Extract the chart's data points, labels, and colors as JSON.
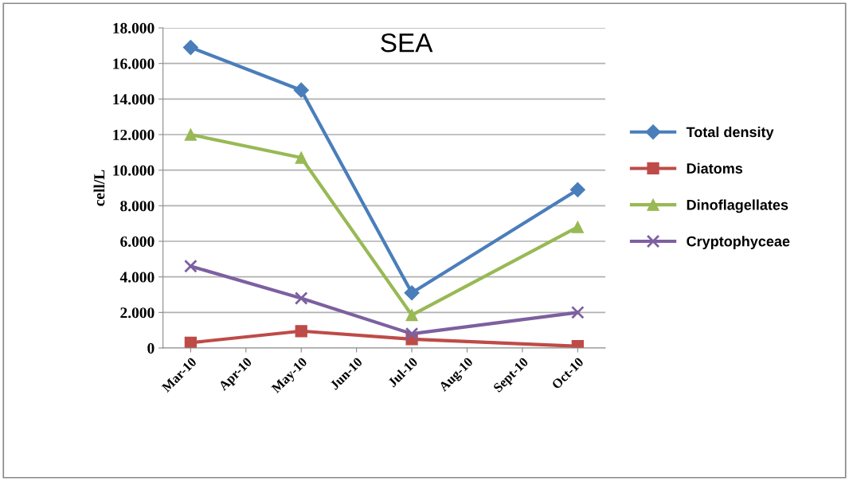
{
  "chart_data": {
    "type": "line",
    "title": "SEA",
    "ylabel": "cell/L",
    "categories": [
      "Mar-10",
      "Apr-10",
      "May-10",
      "Jun-10",
      "Jul-10",
      "Aug-10",
      "Sept-10",
      "Oct-10"
    ],
    "series": [
      {
        "name": "Total density",
        "color": "#4a7ebb",
        "marker": "diamond",
        "values": [
          16900,
          null,
          14500,
          null,
          3100,
          null,
          null,
          8900
        ]
      },
      {
        "name": "Diatoms",
        "color": "#be4b48",
        "marker": "square",
        "values": [
          300,
          null,
          950,
          null,
          500,
          null,
          null,
          100
        ]
      },
      {
        "name": "Dinoflagellates",
        "color": "#98b954",
        "marker": "triangle",
        "values": [
          12000,
          null,
          10700,
          null,
          1850,
          null,
          null,
          6800
        ]
      },
      {
        "name": "Cryptophyceae",
        "color": "#7d60a0",
        "marker": "cross",
        "values": [
          4600,
          null,
          2800,
          null,
          800,
          null,
          null,
          2000
        ]
      }
    ],
    "ylim": [
      0,
      18000
    ],
    "yticks": [
      0,
      {
        "value": 2000,
        "label": "2.000"
      },
      {
        "value": 4000,
        "label": "4.000"
      },
      {
        "value": 6000,
        "label": "6.000"
      },
      {
        "value": 8000,
        "label": "8.000"
      },
      {
        "value": 10000,
        "label": "10.000"
      },
      {
        "value": 12000,
        "label": "12.000"
      },
      {
        "value": 14000,
        "label": "14.000"
      },
      {
        "value": 16000,
        "label": "16.000"
      },
      {
        "value": 18000,
        "label": "18.000"
      }
    ],
    "grid": "y",
    "legend": "right",
    "line_style": "solid"
  }
}
